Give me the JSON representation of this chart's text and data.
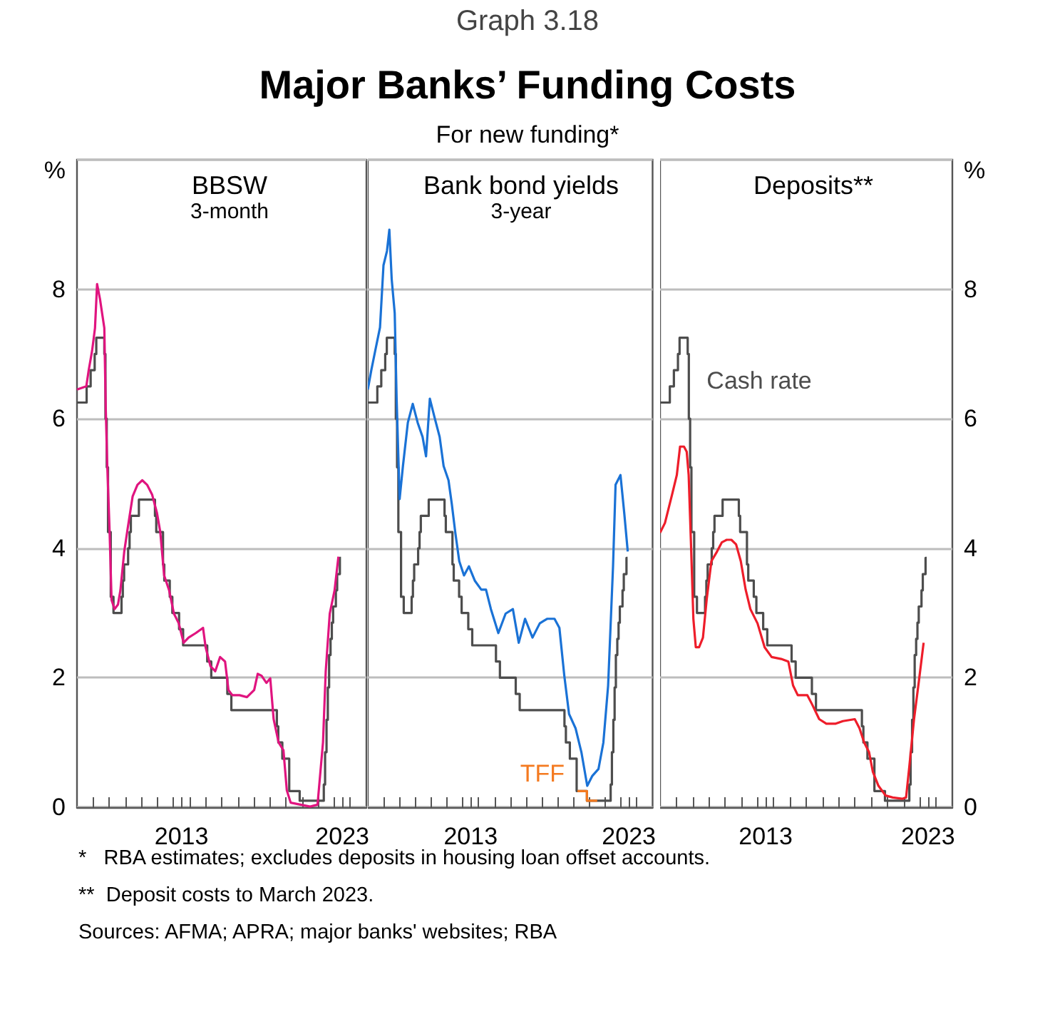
{
  "chart_data": [
    {
      "type": "other",
      "title": "Major Banks’ Funding Costs",
      "subtitle": "For new funding*",
      "annotations": [
        "Graph 3.18",
        "*   RBA estimates; excludes deposits in housing loan offset accounts.",
        "**  Deposit costs to March 2023.",
        "Sources: AFMA; APRA; major banks' websites; RBA"
      ]
    },
    {
      "type": "line",
      "title": "BBSW",
      "subtitle": "3-month",
      "ylabel": "%",
      "xlim": [
        2007,
        2025
      ],
      "xticks": [
        {
          "value": 2008,
          "label": null
        },
        {
          "value": 2009,
          "label": null
        },
        {
          "value": 2010,
          "label": null
        },
        {
          "value": 2011,
          "label": null
        },
        {
          "value": 2012,
          "label": null
        },
        {
          "value": 2013,
          "label": null
        },
        {
          "value": 2013.5,
          "label": "2013"
        },
        {
          "value": 2014,
          "label": null
        },
        {
          "value": 2015,
          "label": null
        },
        {
          "value": 2016,
          "label": null
        },
        {
          "value": 2017,
          "label": null
        },
        {
          "value": 2018,
          "label": null
        },
        {
          "value": 2019,
          "label": null
        },
        {
          "value": 2020,
          "label": null
        },
        {
          "value": 2021,
          "label": null
        },
        {
          "value": 2022,
          "label": null
        },
        {
          "value": 2023,
          "label": null
        },
        {
          "value": 2023.5,
          "label": "2023"
        },
        {
          "value": 2024,
          "label": null
        }
      ],
      "ylim": [
        0,
        10
      ],
      "yticks": [
        0,
        2,
        4,
        6,
        8
      ],
      "grid": "y",
      "marker": "none",
      "series": [
        {
          "type": "step",
          "color": "#4d4d4d",
          "x": [
            2007.0,
            2007.6,
            2007.85,
            2008.1,
            2008.2,
            2008.7,
            2008.77,
            2008.85,
            2008.93,
            2009.1,
            2009.27,
            2009.77,
            2009.85,
            2009.93,
            2010.18,
            2010.27,
            2010.35,
            2010.85,
            2011.85,
            2011.93,
            2012.35,
            2012.43,
            2012.77,
            2012.93,
            2013.35,
            2013.6,
            2015.1,
            2015.35,
            2016.35,
            2016.6,
            2019.43,
            2019.52,
            2019.77,
            2020.2,
            2020.85,
            2022.35,
            2022.43,
            2022.52,
            2022.6,
            2022.68,
            2022.77,
            2022.85,
            2022.93,
            2023.1,
            2023.18,
            2023.35,
            2023.42
          ],
          "values": [
            6.25,
            6.5,
            6.75,
            7.0,
            7.25,
            7.0,
            6.0,
            5.25,
            4.25,
            3.25,
            3.0,
            3.25,
            3.5,
            3.75,
            4.0,
            4.25,
            4.5,
            4.75,
            4.5,
            4.25,
            3.75,
            3.5,
            3.25,
            3.0,
            2.75,
            2.5,
            2.25,
            2.0,
            1.75,
            1.5,
            1.25,
            1.0,
            0.75,
            0.25,
            0.1,
            0.35,
            0.85,
            1.35,
            1.85,
            2.35,
            2.6,
            2.85,
            3.1,
            3.35,
            3.6,
            3.85,
            3.85
          ]
        },
        {
          "type": "line",
          "color": "#e0147f",
          "x": [
            2007.0,
            2007.58,
            2007.73,
            2007.94,
            2008.12,
            2008.25,
            2008.43,
            2008.58,
            2008.7,
            2008.79,
            2008.88,
            2009.03,
            2009.15,
            2009.34,
            2009.55,
            2009.7,
            2009.94,
            2010.15,
            2010.46,
            2010.76,
            2011.06,
            2011.36,
            2011.67,
            2011.97,
            2012.18,
            2012.42,
            2012.73,
            2013.03,
            2013.33,
            2013.63,
            2013.94,
            2014.39,
            2014.84,
            2015.0,
            2015.3,
            2015.6,
            2015.9,
            2016.21,
            2016.42,
            2016.66,
            2017.11,
            2017.57,
            2018.02,
            2018.24,
            2018.48,
            2018.78,
            2019.02,
            2019.23,
            2019.54,
            2019.84,
            2020.05,
            2020.29,
            2020.9,
            2021.5,
            2021.96,
            2022.3,
            2022.47,
            2022.72,
            2023.02,
            2023.26
          ],
          "values": [
            6.45,
            6.5,
            6.75,
            7.05,
            7.4,
            8.08,
            7.85,
            7.6,
            7.4,
            6.15,
            5.3,
            4.25,
            3.2,
            3.06,
            3.13,
            3.35,
            3.95,
            4.3,
            4.8,
            4.98,
            5.05,
            4.98,
            4.83,
            4.55,
            4.25,
            3.58,
            3.35,
            2.99,
            2.84,
            2.54,
            2.62,
            2.69,
            2.77,
            2.47,
            2.18,
            2.1,
            2.32,
            2.25,
            1.81,
            1.73,
            1.73,
            1.7,
            1.81,
            2.06,
            2.03,
            1.92,
            1.99,
            1.36,
            1.0,
            0.88,
            0.26,
            0.07,
            0.04,
            0.01,
            0.04,
            1.0,
            2.1,
            2.99,
            3.35,
            3.87
          ]
        }
      ]
    },
    {
      "type": "line",
      "title": "Bank bond yields",
      "subtitle": "3-year",
      "xlim": [
        2007,
        2025
      ],
      "xticks": [
        {
          "value": 2008,
          "label": null
        },
        {
          "value": 2009,
          "label": null
        },
        {
          "value": 2010,
          "label": null
        },
        {
          "value": 2011,
          "label": null
        },
        {
          "value": 2012,
          "label": null
        },
        {
          "value": 2013,
          "label": null
        },
        {
          "value": 2013.5,
          "label": "2013"
        },
        {
          "value": 2014,
          "label": null
        },
        {
          "value": 2015,
          "label": null
        },
        {
          "value": 2016,
          "label": null
        },
        {
          "value": 2017,
          "label": null
        },
        {
          "value": 2018,
          "label": null
        },
        {
          "value": 2019,
          "label": null
        },
        {
          "value": 2020,
          "label": null
        },
        {
          "value": 2021,
          "label": null
        },
        {
          "value": 2022,
          "label": null
        },
        {
          "value": 2023,
          "label": null
        },
        {
          "value": 2023.5,
          "label": "2023"
        },
        {
          "value": 2024,
          "label": null
        }
      ],
      "ylim": [
        0,
        10
      ],
      "yticks": [
        0,
        2,
        4,
        6,
        8
      ],
      "tick_labels": "x",
      "grid": "y",
      "marker": "none",
      "series": [
        {
          "type": "step",
          "color": "#4d4d4d",
          "x": [
            2007.0,
            2007.6,
            2007.85,
            2008.1,
            2008.2,
            2008.7,
            2008.77,
            2008.85,
            2008.93,
            2009.1,
            2009.27,
            2009.77,
            2009.85,
            2009.93,
            2010.18,
            2010.27,
            2010.35,
            2010.85,
            2011.85,
            2011.93,
            2012.35,
            2012.43,
            2012.77,
            2012.93,
            2013.35,
            2013.6,
            2015.1,
            2015.35,
            2016.35,
            2016.6,
            2019.43,
            2019.52,
            2019.77,
            2020.2,
            2020.85,
            2022.35,
            2022.43,
            2022.52,
            2022.6,
            2022.68,
            2022.77,
            2022.85,
            2022.93,
            2023.1,
            2023.18,
            2023.35,
            2023.42
          ],
          "values": [
            6.25,
            6.5,
            6.75,
            7.0,
            7.25,
            7.0,
            6.0,
            5.25,
            4.25,
            3.25,
            3.0,
            3.25,
            3.5,
            3.75,
            4.0,
            4.25,
            4.5,
            4.75,
            4.5,
            4.25,
            3.75,
            3.5,
            3.25,
            3.0,
            2.75,
            2.5,
            2.25,
            2.0,
            1.75,
            1.5,
            1.25,
            1.0,
            0.75,
            0.25,
            0.1,
            0.35,
            0.85,
            1.35,
            1.85,
            2.35,
            2.6,
            2.85,
            3.1,
            3.35,
            3.6,
            3.85,
            3.85
          ]
        },
        {
          "type": "line",
          "color": "#1a72d6",
          "x": [
            2007.0,
            2007.22,
            2007.46,
            2007.77,
            2007.99,
            2008.21,
            2008.36,
            2008.51,
            2008.7,
            2008.82,
            2009.01,
            2009.22,
            2009.53,
            2009.84,
            2010.15,
            2010.46,
            2010.68,
            2010.92,
            2011.23,
            2011.54,
            2011.79,
            2012.1,
            2012.31,
            2012.53,
            2012.78,
            2013.08,
            2013.39,
            2013.76,
            2014.17,
            2014.47,
            2014.78,
            2015.25,
            2015.71,
            2016.17,
            2016.54,
            2016.94,
            2017.41,
            2017.87,
            2018.33,
            2018.8,
            2019.11,
            2019.42,
            2019.72,
            2020.13,
            2020.5,
            2020.87,
            2021.18,
            2021.58,
            2021.89,
            2022.19,
            2022.5,
            2022.66,
            2022.97,
            2023.21,
            2023.43
          ],
          "values": [
            6.45,
            6.75,
            7.04,
            7.41,
            8.37,
            8.59,
            8.92,
            8.15,
            7.63,
            6.31,
            4.76,
            5.27,
            5.94,
            6.23,
            5.94,
            5.72,
            5.42,
            6.31,
            6.01,
            5.72,
            5.27,
            5.05,
            4.68,
            4.24,
            3.8,
            3.58,
            3.72,
            3.5,
            3.36,
            3.36,
            3.06,
            2.69,
            2.99,
            3.06,
            2.54,
            2.91,
            2.62,
            2.84,
            2.91,
            2.91,
            2.77,
            2.03,
            1.44,
            1.22,
            0.85,
            0.33,
            0.48,
            0.59,
            1.0,
            1.88,
            3.72,
            4.98,
            5.13,
            4.54,
            3.95
          ]
        },
        {
          "type": "step",
          "name": "TFF",
          "color": "#f47a20",
          "x": [
            2020.25,
            2020.85,
            2021.5
          ],
          "values": [
            0.25,
            0.1,
            0.1
          ]
        }
      ]
    },
    {
      "type": "line",
      "title": "Deposits**",
      "y2label": "%",
      "xlim": [
        2007,
        2025
      ],
      "xticks": [
        {
          "value": 2008,
          "label": null
        },
        {
          "value": 2009,
          "label": null
        },
        {
          "value": 2010,
          "label": null
        },
        {
          "value": 2011,
          "label": null
        },
        {
          "value": 2012,
          "label": null
        },
        {
          "value": 2013,
          "label": null
        },
        {
          "value": 2013.5,
          "label": "2013"
        },
        {
          "value": 2014,
          "label": null
        },
        {
          "value": 2015,
          "label": null
        },
        {
          "value": 2016,
          "label": null
        },
        {
          "value": 2017,
          "label": null
        },
        {
          "value": 2018,
          "label": null
        },
        {
          "value": 2019,
          "label": null
        },
        {
          "value": 2020,
          "label": null
        },
        {
          "value": 2021,
          "label": null
        },
        {
          "value": 2022,
          "label": null
        },
        {
          "value": 2023,
          "label": null
        },
        {
          "value": 2023.5,
          "label": "2023"
        },
        {
          "value": 2024,
          "label": null
        }
      ],
      "y2lim": [
        0,
        10
      ],
      "y2ticks": [
        0,
        2,
        4,
        6,
        8
      ],
      "grid": "y",
      "marker": "none",
      "series": [
        {
          "type": "step",
          "name": "Cash rate",
          "axis": "y2",
          "color": "#4d4d4d",
          "x": [
            2007.0,
            2007.6,
            2007.85,
            2008.1,
            2008.2,
            2008.7,
            2008.77,
            2008.85,
            2008.93,
            2009.1,
            2009.27,
            2009.77,
            2009.85,
            2009.93,
            2010.18,
            2010.27,
            2010.35,
            2010.85,
            2011.85,
            2011.93,
            2012.35,
            2012.43,
            2012.77,
            2012.93,
            2013.35,
            2013.6,
            2015.1,
            2015.35,
            2016.35,
            2016.6,
            2019.43,
            2019.52,
            2019.77,
            2020.2,
            2020.85,
            2022.35,
            2022.43,
            2022.52,
            2022.6,
            2022.68,
            2022.77,
            2022.85,
            2022.93,
            2023.1,
            2023.18,
            2023.35,
            2023.42
          ],
          "values": [
            6.25,
            6.5,
            6.75,
            7.0,
            7.25,
            7.0,
            6.0,
            5.25,
            4.25,
            3.25,
            3.0,
            3.25,
            3.5,
            3.75,
            4.0,
            4.25,
            4.5,
            4.75,
            4.5,
            4.25,
            3.75,
            3.5,
            3.25,
            3.0,
            2.75,
            2.5,
            2.25,
            2.0,
            1.75,
            1.5,
            1.25,
            1.0,
            0.75,
            0.25,
            0.1,
            0.35,
            0.85,
            1.35,
            1.85,
            2.35,
            2.6,
            2.85,
            3.1,
            3.35,
            3.6,
            3.85,
            3.85
          ]
        },
        {
          "type": "line",
          "axis": "y2",
          "color": "#ee1d2a",
          "x": [
            2007.0,
            2007.3,
            2007.74,
            2008.03,
            2008.23,
            2008.47,
            2008.64,
            2008.76,
            2008.9,
            2009.05,
            2009.2,
            2009.4,
            2009.64,
            2009.87,
            2010.16,
            2010.51,
            2010.8,
            2011.1,
            2011.39,
            2011.68,
            2011.97,
            2012.27,
            2012.56,
            2013.0,
            2013.44,
            2013.87,
            2014.46,
            2014.9,
            2015.19,
            2015.48,
            2016.07,
            2016.36,
            2016.8,
            2017.24,
            2017.82,
            2018.26,
            2018.99,
            2019.28,
            2019.57,
            2019.87,
            2020.1,
            2020.45,
            2020.89,
            2021.33,
            2021.91,
            2022.15,
            2022.35,
            2022.64,
            2022.94,
            2023.23
          ],
          "values": [
            4.24,
            4.39,
            4.83,
            5.13,
            5.57,
            5.57,
            5.49,
            5.13,
            4.09,
            2.91,
            2.47,
            2.47,
            2.62,
            3.21,
            3.8,
            3.95,
            4.09,
            4.13,
            4.13,
            4.06,
            3.8,
            3.36,
            3.06,
            2.84,
            2.47,
            2.32,
            2.29,
            2.25,
            1.88,
            1.73,
            1.73,
            1.59,
            1.36,
            1.29,
            1.29,
            1.33,
            1.36,
            1.22,
            1.0,
            0.85,
            0.55,
            0.33,
            0.18,
            0.15,
            0.13,
            0.15,
            0.63,
            1.36,
            1.95,
            2.54
          ]
        }
      ]
    }
  ]
}
